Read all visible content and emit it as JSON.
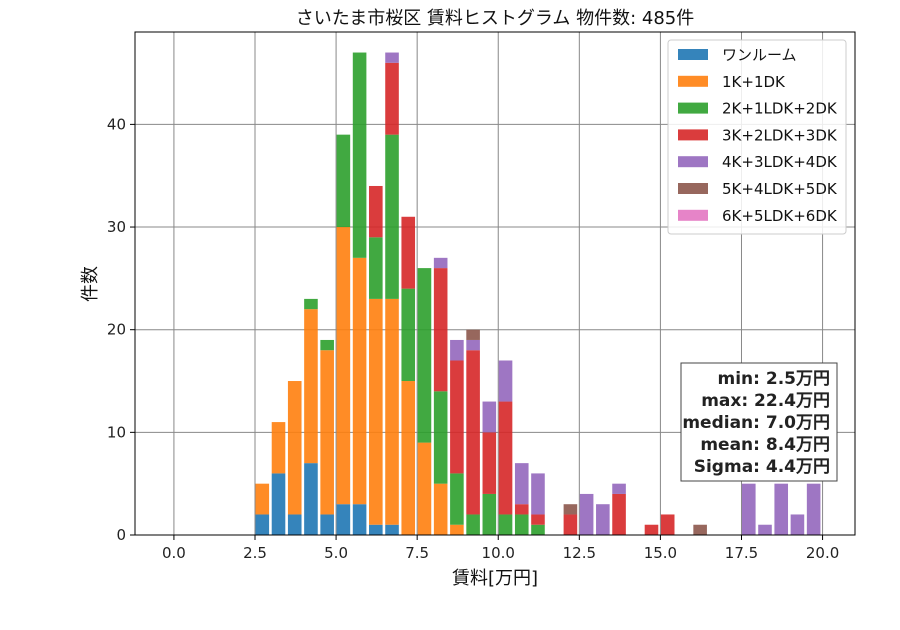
{
  "chart_data": {
    "type": "bar",
    "stacked": true,
    "title": "さいたま市桜区 賃料ヒストグラム 物件数: 485件",
    "xlabel": "賃料[万円]",
    "ylabel": "件数",
    "xlim": [
      -1.2,
      21.0
    ],
    "ylim": [
      0,
      49
    ],
    "xticks": [
      "0.0",
      "2.5",
      "5.0",
      "7.5",
      "10.0",
      "12.5",
      "15.0",
      "17.5",
      "20.0"
    ],
    "yticks": [
      "0",
      "10",
      "20",
      "30",
      "40"
    ],
    "grid": true,
    "legend_position": "top-right",
    "bin_width": 0.5,
    "bins": [
      2.5,
      3.0,
      3.5,
      4.0,
      4.5,
      5.0,
      5.5,
      6.0,
      6.5,
      7.0,
      7.5,
      8.0,
      8.5,
      9.0,
      9.5,
      10.0,
      10.5,
      11.0,
      12.0,
      12.5,
      13.0,
      13.5,
      14.5,
      15.0,
      16.0,
      17.5,
      18.0,
      18.5,
      19.0,
      19.5
    ],
    "series": [
      {
        "name": "ワンルーム",
        "color": "#1f77b4",
        "values": [
          2,
          6,
          2,
          7,
          2,
          3,
          3,
          1,
          1,
          0,
          0,
          0,
          0,
          0,
          0,
          0,
          0,
          0,
          0,
          0,
          0,
          0,
          0,
          0,
          0,
          0,
          0,
          0,
          0,
          0
        ]
      },
      {
        "name": "1K+1DK",
        "color": "#ff7f0e",
        "values": [
          3,
          5,
          13,
          15,
          16,
          27,
          24,
          22,
          22,
          15,
          9,
          5,
          1,
          0,
          0,
          0,
          0,
          0,
          0,
          0,
          0,
          0,
          0,
          0,
          0,
          0,
          0,
          0,
          0,
          0
        ]
      },
      {
        "name": "2K+1LDK+2DK",
        "color": "#2ca02c",
        "values": [
          0,
          0,
          0,
          1,
          1,
          9,
          20,
          6,
          16,
          9,
          17,
          9,
          5,
          2,
          4,
          2,
          2,
          1,
          0,
          0,
          0,
          0,
          0,
          0,
          0,
          0,
          0,
          0,
          0,
          0
        ]
      },
      {
        "name": "3K+2LDK+3DK",
        "color": "#d62728",
        "values": [
          0,
          0,
          0,
          0,
          0,
          0,
          0,
          5,
          7,
          7,
          0,
          12,
          11,
          16,
          6,
          11,
          1,
          1,
          2,
          0,
          0,
          4,
          1,
          2,
          0,
          0,
          0,
          0,
          0,
          0
        ]
      },
      {
        "name": "4K+3LDK+4DK",
        "color": "#9467bd",
        "values": [
          0,
          0,
          0,
          0,
          0,
          0,
          0,
          0,
          1,
          0,
          0,
          1,
          2,
          1,
          3,
          4,
          4,
          4,
          0,
          4,
          3,
          1,
          0,
          0,
          0,
          5,
          1,
          5,
          2,
          5
        ]
      },
      {
        "name": "5K+4LDK+5DK",
        "color": "#8c564b",
        "values": [
          0,
          0,
          0,
          0,
          0,
          0,
          0,
          0,
          0,
          0,
          0,
          0,
          0,
          1,
          0,
          0,
          0,
          0,
          1,
          0,
          0,
          0,
          0,
          0,
          1,
          0,
          0,
          0,
          0,
          0
        ]
      },
      {
        "name": "6K+5LDK+6DK",
        "color": "#e377c2",
        "values": [
          0,
          0,
          0,
          0,
          0,
          0,
          0,
          0,
          0,
          0,
          0,
          0,
          0,
          0,
          0,
          0,
          0,
          0,
          0,
          0,
          0,
          0,
          0,
          0,
          0,
          0,
          0,
          0,
          0,
          0
        ]
      }
    ],
    "stats": {
      "min": "min: 2.5万円",
      "max": "max: 22.4万円",
      "median": "median: 7.0万円",
      "mean": "mean: 8.4万円",
      "sigma": "Sigma: 4.4万円"
    }
  }
}
